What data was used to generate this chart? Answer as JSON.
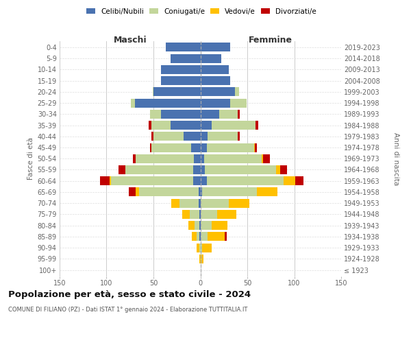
{
  "age_groups": [
    "100+",
    "95-99",
    "90-94",
    "85-89",
    "80-84",
    "75-79",
    "70-74",
    "65-69",
    "60-64",
    "55-59",
    "50-54",
    "45-49",
    "40-44",
    "35-39",
    "30-34",
    "25-29",
    "20-24",
    "15-19",
    "10-14",
    "5-9",
    "0-4"
  ],
  "birth_years": [
    "≤ 1923",
    "1924-1928",
    "1929-1933",
    "1934-1938",
    "1939-1943",
    "1944-1948",
    "1949-1953",
    "1954-1958",
    "1959-1963",
    "1964-1968",
    "1969-1973",
    "1974-1978",
    "1979-1983",
    "1984-1988",
    "1989-1993",
    "1994-1998",
    "1999-2003",
    "2004-2008",
    "2009-2013",
    "2014-2018",
    "2019-2023"
  ],
  "maschi": {
    "celibi": [
      0,
      0,
      0,
      1,
      1,
      1,
      2,
      2,
      8,
      8,
      7,
      10,
      18,
      32,
      42,
      70,
      50,
      42,
      42,
      32,
      37
    ],
    "coniugati": [
      0,
      0,
      1,
      3,
      5,
      10,
      20,
      63,
      87,
      72,
      62,
      42,
      32,
      20,
      12,
      4,
      1,
      0,
      0,
      0,
      0
    ],
    "vedovi": [
      0,
      1,
      3,
      5,
      7,
      8,
      9,
      4,
      2,
      0,
      0,
      0,
      0,
      0,
      0,
      0,
      0,
      0,
      0,
      0,
      0
    ],
    "divorziati": [
      0,
      0,
      0,
      0,
      0,
      0,
      0,
      7,
      10,
      7,
      3,
      2,
      2,
      3,
      0,
      0,
      0,
      0,
      0,
      0,
      0
    ]
  },
  "femmine": {
    "nubili": [
      0,
      0,
      0,
      0,
      0,
      0,
      0,
      2,
      7,
      5,
      4,
      7,
      8,
      12,
      20,
      32,
      37,
      32,
      30,
      22,
      32
    ],
    "coniugate": [
      0,
      1,
      2,
      8,
      12,
      18,
      30,
      58,
      82,
      76,
      61,
      50,
      32,
      47,
      20,
      17,
      4,
      0,
      0,
      0,
      0
    ],
    "vedove": [
      0,
      2,
      10,
      18,
      17,
      20,
      22,
      22,
      12,
      4,
      2,
      1,
      0,
      0,
      0,
      0,
      0,
      0,
      0,
      0,
      0
    ],
    "divorziate": [
      0,
      0,
      0,
      2,
      0,
      0,
      0,
      0,
      9,
      7,
      7,
      2,
      2,
      3,
      2,
      0,
      0,
      0,
      0,
      0,
      0
    ]
  },
  "colors": {
    "celibi": "#4a72b0",
    "coniugati": "#c3d69b",
    "vedovi": "#ffc000",
    "divorziati": "#c00000"
  },
  "xlim": 150,
  "title": "Popolazione per età, sesso e stato civile - 2024",
  "subtitle": "COMUNE DI FILIANO (PZ) - Dati ISTAT 1° gennaio 2024 - Elaborazione TUTTITALIA.IT",
  "ylabel_left": "Fasce di età",
  "ylabel_right": "Anni di nascita",
  "xlabel_maschi": "Maschi",
  "xlabel_femmine": "Femmine",
  "bg_color": "#ffffff",
  "legend_labels": [
    "Celibi/Nubili",
    "Coniugati/e",
    "Vedovi/e",
    "Divorziati/e"
  ]
}
